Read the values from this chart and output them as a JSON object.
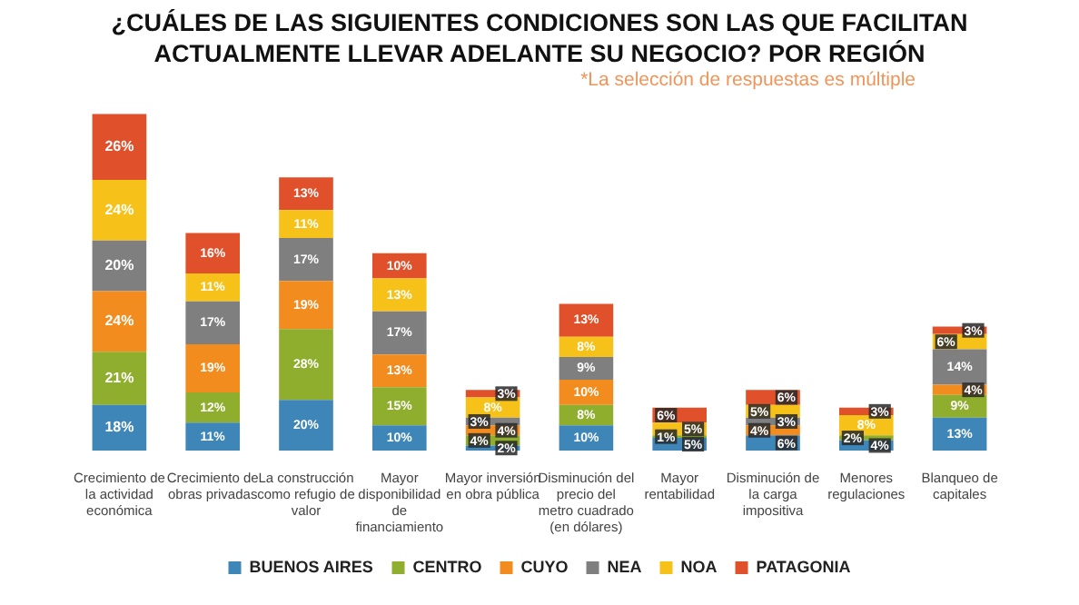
{
  "chart_data": {
    "type": "bar",
    "stacked": true,
    "title": "¿CUÁLES DE LAS SIGUIENTES CONDICIONES SON LAS QUE FACILITAN ACTUALMENTE LLEVAR ADELANTE SU NEGOCIO? POR REGIÓN",
    "annotations": [
      "*La selección de respuestas es múltiple"
    ],
    "categories": [
      "Crecimiento de la actividad económica",
      "Crecimiento de obras privadas",
      "La construcción como refugio de valor",
      "Mayor disponibilidad de financiamiento",
      "Mayor inversión en obra pública",
      "Disminución del precio del metro cuadrado (en dólares)",
      "Mayor rentabilidad",
      "Disminución de la carga impositiva",
      "Menores regulaciones",
      "Blanqueo de capitales"
    ],
    "series": [
      {
        "name": "BUENOS AIRES",
        "color": "#3e86b8",
        "values": [
          18,
          11,
          20,
          10,
          2,
          10,
          5,
          6,
          4,
          13
        ],
        "value_labels": [
          "18%",
          "11%",
          "20%",
          "10%",
          "2%",
          "10%",
          "5%",
          "6%",
          "4%",
          "13%"
        ]
      },
      {
        "name": "CENTRO",
        "color": "#8fae2e",
        "values": [
          21,
          12,
          28,
          15,
          4,
          8,
          1,
          null,
          2,
          9
        ],
        "value_labels": [
          "21%",
          "12%",
          "28%",
          "15%",
          "4%",
          "8%",
          "1%",
          null,
          "2%",
          "9%"
        ]
      },
      {
        "name": "CUYO",
        "color": "#f28c1e",
        "values": [
          24,
          19,
          19,
          13,
          4,
          10,
          null,
          4,
          null,
          4
        ],
        "value_labels": [
          "24%",
          "19%",
          "19%",
          "13%",
          "4%",
          "10%",
          null,
          "4%",
          null,
          "4%"
        ]
      },
      {
        "name": "NEA",
        "color": "#7f7f7f",
        "values": [
          20,
          17,
          17,
          17,
          3,
          9,
          null,
          3,
          null,
          14
        ],
        "value_labels": [
          "20%",
          "17%",
          "17%",
          "17%",
          "3%",
          "9%",
          null,
          "3%",
          null,
          "14%"
        ]
      },
      {
        "name": "NOA",
        "color": "#f6c21a",
        "values": [
          24,
          11,
          11,
          13,
          8,
          8,
          5,
          5,
          8,
          6
        ],
        "value_labels": [
          "24%",
          "11%",
          "11%",
          "13%",
          "8%",
          "8%",
          "5%",
          "5%",
          "8%",
          "6%"
        ]
      },
      {
        "name": "PATAGONIA",
        "color": "#e0502a",
        "values": [
          26,
          16,
          13,
          10,
          3,
          13,
          6,
          6,
          3,
          3
        ],
        "value_labels": [
          "26%",
          "16%",
          "13%",
          "10%",
          "3%",
          "13%",
          "6%",
          "6%",
          "3%",
          "3%"
        ]
      }
    ],
    "legend": "bottom",
    "grid": false
  }
}
